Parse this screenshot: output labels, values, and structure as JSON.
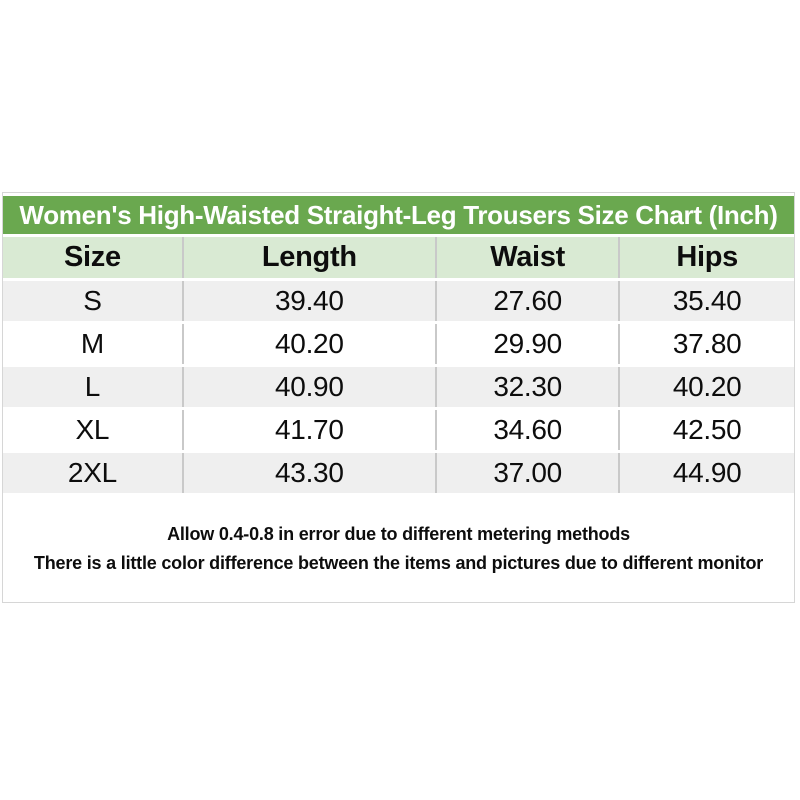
{
  "chart_data": {
    "type": "table",
    "title": "Women's High-Waisted Straight-Leg Trousers Size Chart (Inch)",
    "unit": "Inch",
    "columns": [
      "Size",
      "Length",
      "Waist",
      "Hips"
    ],
    "rows": [
      [
        "S",
        "39.40",
        "27.60",
        "35.40"
      ],
      [
        "M",
        "40.20",
        "29.90",
        "37.80"
      ],
      [
        "L",
        "40.90",
        "32.30",
        "40.20"
      ],
      [
        "XL",
        "41.70",
        "34.60",
        "42.50"
      ],
      [
        "2XL",
        "43.30",
        "37.00",
        "44.90"
      ]
    ],
    "notes": [
      "Allow 0.4-0.8 in error due to different metering methods",
      "There is a little color difference between the items and pictures due to different monitor"
    ]
  },
  "colors": {
    "title-bg": "#6aa84f",
    "title-text": "#ffffff",
    "header-bg": "#d9ead3",
    "row-stripe": "#efefef",
    "grid-line": "#c9c9c9",
    "outer-border": "#d6d6d6",
    "text": "#0d0d0d"
  }
}
